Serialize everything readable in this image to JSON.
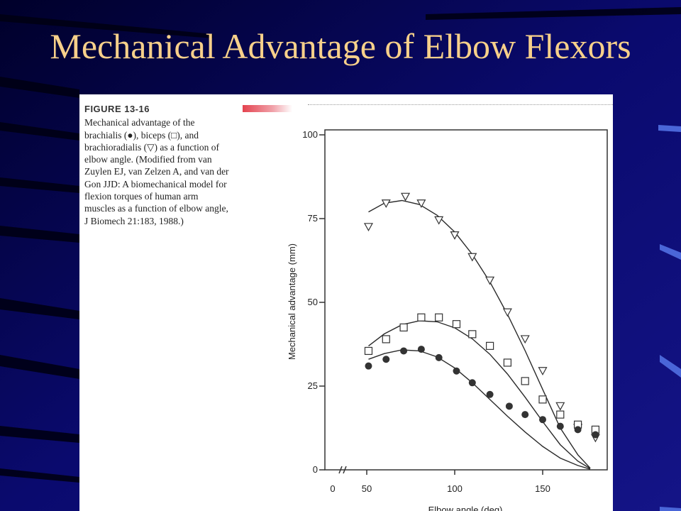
{
  "slide": {
    "title": "Mechanical Advantage of Elbow Flexors"
  },
  "figure": {
    "label": "FIGURE 13-16",
    "caption_parts": {
      "a": "Mechanical advantage of the brachialis (",
      "sym1": "●",
      "b": "), biceps (",
      "sym2": "□",
      "c": "), and brachioradialis (",
      "sym3": "▽",
      "d": ") as a function of elbow angle. (Modified from van Zuylen EJ, van Zelzen A, and van der Gon JJD: A biomechanical model for flexion torques of human arm muscles as a function of elbow angle, J Biomech 21:183, 1988.)"
    }
  },
  "colors": {
    "background": "#000033",
    "title": "#f7d08a",
    "accent_bar": "#e4434f"
  },
  "chart_data": {
    "type": "scatter",
    "xlabel": "Elbow angle (deg)",
    "ylabel": "Mechanical advantage (mm)",
    "xlim": [
      40,
      180
    ],
    "ylim": [
      0,
      100
    ],
    "x_ticks": [
      "0",
      "50",
      "100",
      "150"
    ],
    "y_ticks": [
      "0",
      "25",
      "50",
      "75",
      "100"
    ],
    "axis_break": true,
    "series": [
      {
        "marker": "triangle-down",
        "points": [
          [
            51,
            72.5
          ],
          [
            61,
            79.5
          ],
          [
            72,
            81.5
          ],
          [
            81,
            79.5
          ],
          [
            91,
            74.5
          ],
          [
            100,
            70
          ],
          [
            110,
            63.5
          ],
          [
            120,
            56.5
          ],
          [
            130,
            47
          ],
          [
            140,
            39
          ],
          [
            150,
            29.5
          ],
          [
            160,
            19
          ],
          [
            170,
            12.5
          ],
          [
            180,
            9.5
          ]
        ],
        "curve": [
          [
            51,
            77
          ],
          [
            60,
            79.6
          ],
          [
            70,
            80.4
          ],
          [
            80,
            79.2
          ],
          [
            90,
            76
          ],
          [
            100,
            71
          ],
          [
            110,
            64.3
          ],
          [
            120,
            56.1
          ],
          [
            130,
            46.4
          ],
          [
            140,
            35.6
          ],
          [
            150,
            24
          ],
          [
            160,
            12.5
          ],
          [
            170,
            4.5
          ],
          [
            177,
            0.5
          ]
        ]
      },
      {
        "marker": "square",
        "points": [
          [
            51,
            35.5
          ],
          [
            61,
            39
          ],
          [
            71,
            42.5
          ],
          [
            81,
            45.5
          ],
          [
            91,
            45.5
          ],
          [
            101,
            43.5
          ],
          [
            110,
            40.5
          ],
          [
            120,
            37
          ],
          [
            130,
            32
          ],
          [
            140,
            26.5
          ],
          [
            150,
            21
          ],
          [
            160,
            16.5
          ],
          [
            170,
            13.5
          ],
          [
            180,
            12
          ]
        ],
        "curve": [
          [
            51,
            37
          ],
          [
            60,
            40.6
          ],
          [
            70,
            43.3
          ],
          [
            80,
            44.5
          ],
          [
            90,
            44.2
          ],
          [
            100,
            42.4
          ],
          [
            110,
            39.1
          ],
          [
            120,
            34.5
          ],
          [
            130,
            28.6
          ],
          [
            140,
            21.7
          ],
          [
            150,
            14.4
          ],
          [
            160,
            7.5
          ],
          [
            170,
            2.6
          ],
          [
            177,
            0.4
          ]
        ]
      },
      {
        "marker": "circle",
        "points": [
          [
            51,
            31
          ],
          [
            61,
            33
          ],
          [
            71,
            35.5
          ],
          [
            81,
            36
          ],
          [
            91,
            33.5
          ],
          [
            101,
            29.5
          ],
          [
            110,
            26
          ],
          [
            120,
            22.5
          ],
          [
            131,
            19
          ],
          [
            140,
            16.5
          ],
          [
            150,
            15
          ],
          [
            160,
            13
          ],
          [
            170,
            12
          ],
          [
            180,
            10.5
          ]
        ],
        "curve": [
          [
            51,
            33
          ],
          [
            60,
            34.7
          ],
          [
            70,
            35.8
          ],
          [
            80,
            35.5
          ],
          [
            90,
            33.7
          ],
          [
            100,
            30.4
          ],
          [
            110,
            26
          ],
          [
            120,
            21
          ],
          [
            130,
            16
          ],
          [
            140,
            11.3
          ],
          [
            150,
            7
          ],
          [
            160,
            3.5
          ],
          [
            170,
            1.3
          ],
          [
            177,
            0.2
          ]
        ]
      }
    ]
  }
}
